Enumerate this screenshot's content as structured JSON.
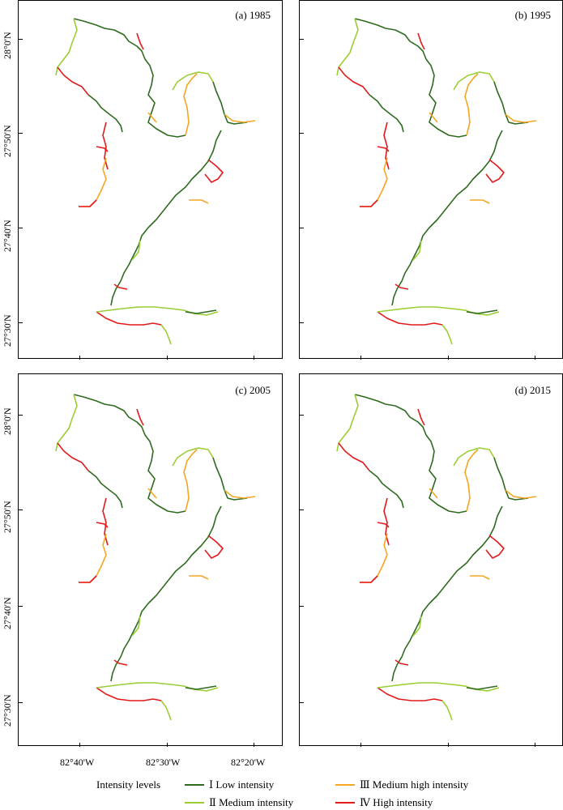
{
  "panels": [
    {
      "title": "(a) 1985"
    },
    {
      "title": "(b) 1995"
    },
    {
      "title": "(c) 2005"
    },
    {
      "title": "(d) 2015"
    }
  ],
  "latitude_labels": [
    "28°0'N",
    "27°50'N",
    "27°40'N",
    "27°30'N"
  ],
  "longitude_labels": [
    "82°40'W",
    "82°30'W",
    "82°20'W"
  ],
  "legend": {
    "title": "Intensity levels",
    "items": [
      {
        "label": "Ⅰ Low intensity",
        "color": "#2e6b1f"
      },
      {
        "label": "Ⅱ Medium intensity",
        "color": "#9acd32"
      },
      {
        "label": "Ⅲ Medium high intensity",
        "color": "#f5a623"
      },
      {
        "label": "Ⅳ High intensity",
        "color": "#e31a1c"
      }
    ]
  }
}
